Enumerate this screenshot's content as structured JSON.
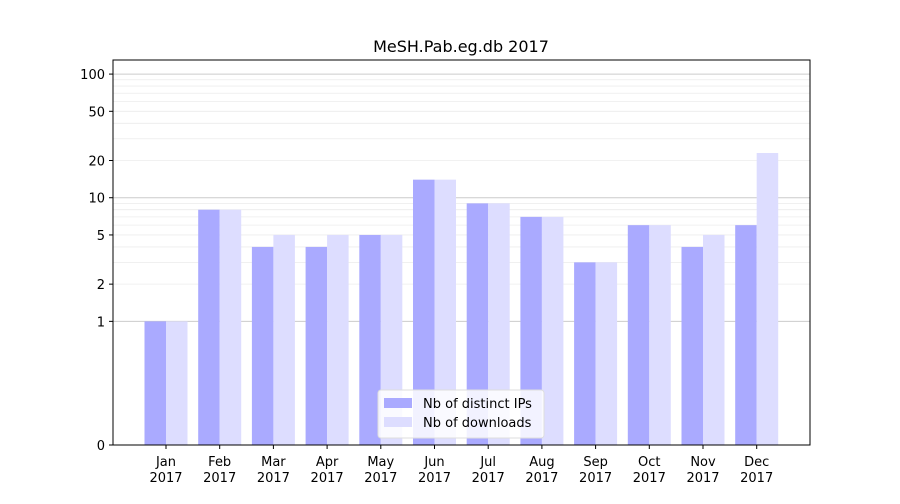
{
  "chart_data": {
    "type": "bar",
    "title": "MeSH.Pab.eg.db 2017",
    "xlabel": "",
    "ylabel": "",
    "y_scale": "symlog",
    "ylim": [
      0,
      130
    ],
    "y_ticks": [
      0,
      1,
      2,
      5,
      10,
      20,
      50,
      100
    ],
    "categories": [
      "Jan\n2017",
      "Feb\n2017",
      "Mar\n2017",
      "Apr\n2017",
      "May\n2017",
      "Jun\n2017",
      "Jul\n2017",
      "Aug\n2017",
      "Sep\n2017",
      "Oct\n2017",
      "Nov\n2017",
      "Dec\n2017"
    ],
    "series": [
      {
        "name": "Nb of distinct IPs",
        "color": "#aaaaff",
        "values": [
          1,
          8,
          4,
          4,
          5,
          14,
          9,
          7,
          3,
          6,
          4,
          6
        ]
      },
      {
        "name": "Nb of downloads",
        "color": "#ddddff",
        "values": [
          1,
          8,
          5,
          5,
          5,
          14,
          9,
          7,
          3,
          6,
          5,
          23
        ]
      }
    ],
    "legend_position": "lower-center",
    "grid": true
  }
}
